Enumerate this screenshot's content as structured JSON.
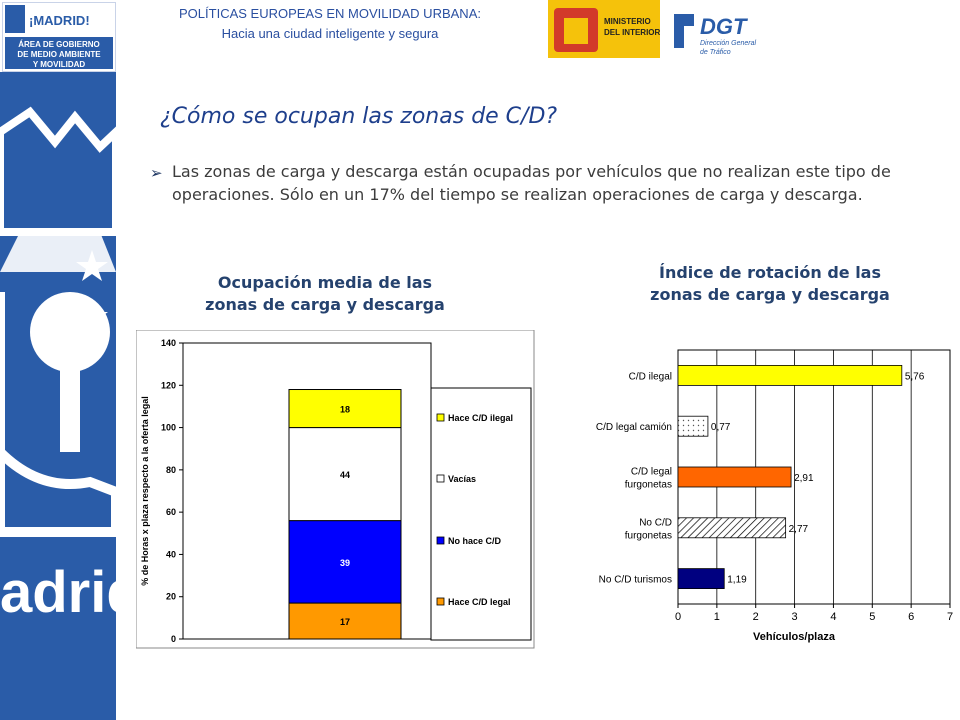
{
  "header": {
    "line1": "POLÍTICAS EUROPEAS EN MOVILIDAD URBANA:",
    "line2": "Hacia una ciudad inteligente y segura"
  },
  "logos": {
    "madrid": "¡MADRID!",
    "area_line1": "ÁREA DE GOBIERNO",
    "area_line2": "DE MEDIO AMBIENTE",
    "area_line3": "Y MOVILIDAD",
    "ministerio_line1": "MINISTERIO",
    "ministerio_line2": "DEL INTERIOR",
    "dgt": "DGT",
    "dgt_sub1": "Dirección General",
    "dgt_sub2": "de Tráfico",
    "sidebar_text": "adrid"
  },
  "slide": {
    "title": "¿Cómo se ocupan las zonas de C/D?",
    "bullet": "Las zonas de carga y descarga están ocupadas por vehículos que no realizan este tipo de operaciones. Sólo en un 17% del tiempo se realizan operaciones de carga y descarga."
  },
  "chart_titles": {
    "c1_line1": "Ocupación media de las",
    "c1_line2": "zonas de carga y descarga",
    "c2_line1": "Índice de rotación de las",
    "c2_line2": "zonas de carga y descarga"
  },
  "colors": {
    "blue_brand": "#2a5ca8",
    "yellow": "#ffff00",
    "blue_bar": "#0000ff",
    "orange": "#ff9900",
    "orange_red": "#ff6600",
    "navy": "#000080"
  },
  "chart_data": [
    {
      "type": "bar",
      "stacked": true,
      "ylabel": "% de Horas x plaza respecto a la oferta legal",
      "ylim": [
        0,
        140
      ],
      "yticks": [
        0,
        20,
        40,
        60,
        80,
        100,
        120,
        140
      ],
      "legend_position": "right",
      "series": [
        {
          "name": "Hace C/D legal",
          "value": 17,
          "label": "17",
          "color": "#ff9900"
        },
        {
          "name": "No hace C/D",
          "value": 39,
          "label": "39",
          "color": "#0000ff"
        },
        {
          "name": "Vacías",
          "value": 44,
          "label": "44",
          "color": "#ffffff"
        },
        {
          "name": "Hace C/D ilegal",
          "value": 18,
          "label": "18",
          "color": "#ffff00"
        }
      ],
      "legend_order": [
        "Hace C/D ilegal",
        "Vacías",
        "No hace C/D",
        "Hace C/D legal"
      ]
    },
    {
      "type": "bar",
      "orientation": "horizontal",
      "xlabel": "Vehículos/plaza",
      "xlim": [
        0,
        7
      ],
      "xticks": [
        0,
        1,
        2,
        3,
        4,
        5,
        6,
        7
      ],
      "grid": true,
      "categories": [
        {
          "lines": [
            "C/D ilegal"
          ],
          "value": 5.76,
          "label": "5,76",
          "fill": "#ffff00",
          "pattern": "none"
        },
        {
          "lines": [
            "C/D legal camión"
          ],
          "value": 0.77,
          "label": "0,77",
          "fill": "#ffffff",
          "pattern": "dots"
        },
        {
          "lines": [
            "C/D legal",
            "furgonetas"
          ],
          "value": 2.91,
          "label": "2,91",
          "fill": "#ff6600",
          "pattern": "none"
        },
        {
          "lines": [
            "No C/D",
            "furgonetas"
          ],
          "value": 2.77,
          "label": "2,77",
          "fill": "#ffffff",
          "pattern": "hatch"
        },
        {
          "lines": [
            "No C/D turismos"
          ],
          "value": 1.19,
          "label": "1,19",
          "fill": "#000080",
          "pattern": "none"
        }
      ]
    }
  ]
}
